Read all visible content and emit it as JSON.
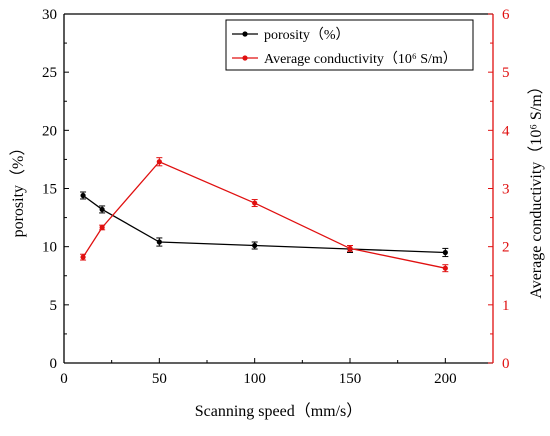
{
  "chart_data": {
    "type": "line",
    "xlabel": "Scanning speed（mm/s）",
    "ylabel_left": "porosity（%）",
    "ylabel_right": "Average conductivity（10⁶ S/m）",
    "xlim": [
      0,
      225
    ],
    "ylim_left": [
      0,
      30
    ],
    "ylim_right": [
      0,
      6
    ],
    "x_ticks": [
      0,
      50,
      100,
      150,
      200
    ],
    "y_ticks_left": [
      0,
      5,
      10,
      15,
      20,
      25,
      30
    ],
    "y_ticks_right": [
      0,
      1,
      2,
      3,
      4,
      5,
      6
    ],
    "grid": false,
    "legend_position": "top-right",
    "series": [
      {
        "name": "porosity（%）",
        "axis": "left",
        "color": "#000000",
        "x": [
          10,
          20,
          50,
          100,
          150,
          200
        ],
        "y": [
          14.4,
          13.2,
          10.4,
          10.1,
          9.8,
          9.5
        ],
        "err": [
          0.3,
          0.3,
          0.35,
          0.3,
          0.3,
          0.35
        ]
      },
      {
        "name": "Average conductivity（10⁶ S/m）",
        "axis": "right",
        "color": "#e01010",
        "x": [
          10,
          20,
          50,
          100,
          150,
          200
        ],
        "y": [
          1.82,
          2.33,
          3.46,
          2.75,
          1.97,
          1.63
        ],
        "err": [
          0.05,
          0.04,
          0.07,
          0.06,
          0.05,
          0.06
        ]
      }
    ]
  }
}
